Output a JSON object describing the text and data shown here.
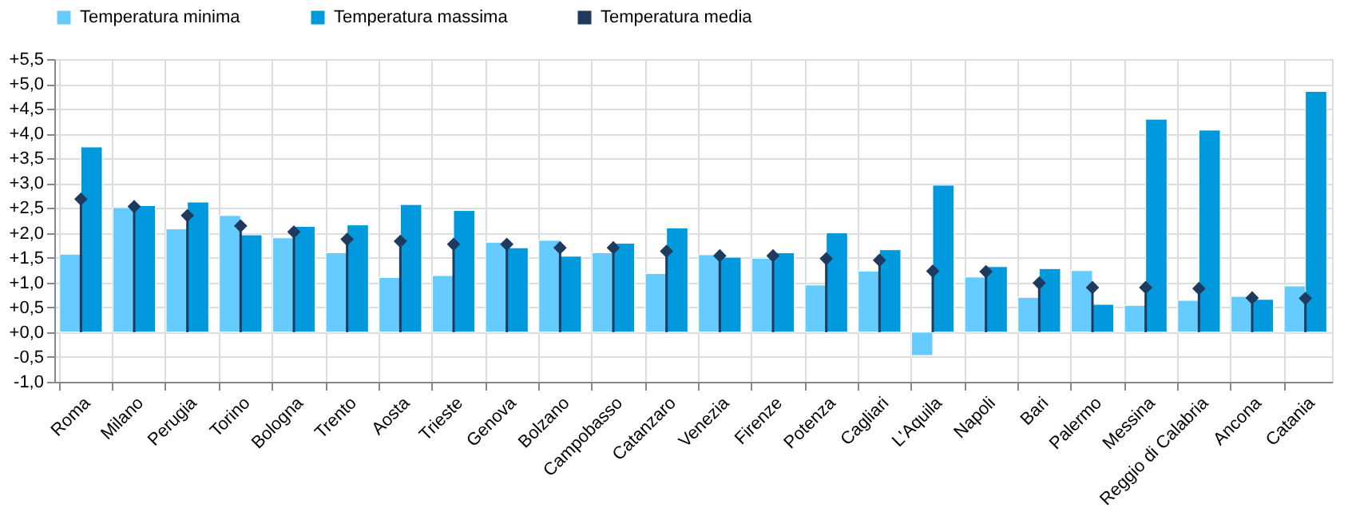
{
  "chart_data": {
    "type": "bar",
    "categories": [
      "Roma",
      "Milano",
      "Perugia",
      "Torino",
      "Bologna",
      "Trento",
      "Aosta",
      "Trieste",
      "Genova",
      "Bolzano",
      "Campobasso",
      "Catanzaro",
      "Venezia",
      "Firenze",
      "Potenza",
      "Cagliari",
      "L'Aquila",
      "Napoli",
      "Bari",
      "Palermo",
      "Messina",
      "Reggio di Calabria",
      "Ancona",
      "Catania"
    ],
    "series": [
      {
        "name": "Temperatura minima",
        "color": "#66ccff",
        "values": [
          1.57,
          2.51,
          2.08,
          2.35,
          1.9,
          1.6,
          1.1,
          1.14,
          1.81,
          1.85,
          1.6,
          1.18,
          1.56,
          1.49,
          0.95,
          1.23,
          -0.47,
          1.11,
          0.7,
          1.24,
          0.54,
          0.64,
          0.72,
          0.93
        ]
      },
      {
        "name": "Temperatura massima",
        "color": "#0099dd",
        "values": [
          3.73,
          2.55,
          2.62,
          1.96,
          2.13,
          2.16,
          2.57,
          2.45,
          1.7,
          1.53,
          1.79,
          2.1,
          1.51,
          1.6,
          2.0,
          1.66,
          2.96,
          1.32,
          1.28,
          0.56,
          4.29,
          4.07,
          0.66,
          4.85
        ]
      },
      {
        "name": "Temperatura media",
        "type": "lollipop",
        "color": "#1f3a5f",
        "marker": "diamond",
        "values": [
          2.68,
          2.53,
          2.35,
          2.14,
          2.02,
          1.87,
          1.83,
          1.77,
          1.77,
          1.7,
          1.7,
          1.63,
          1.54,
          1.54,
          1.48,
          1.45,
          1.23,
          1.22,
          0.99,
          0.9,
          0.9,
          0.88,
          0.69,
          0.68
        ]
      }
    ],
    "ylim": [
      -1.0,
      5.5
    ],
    "yticks": [
      {
        "value": -1.0,
        "label": "-1,0"
      },
      {
        "value": -0.5,
        "label": "-0,5"
      },
      {
        "value": 0.0,
        "label": "+0,0"
      },
      {
        "value": 0.5,
        "label": "+0,5"
      },
      {
        "value": 1.0,
        "label": "+1,0"
      },
      {
        "value": 1.5,
        "label": "+1,5"
      },
      {
        "value": 2.0,
        "label": "+2,0"
      },
      {
        "value": 2.5,
        "label": "+2,5"
      },
      {
        "value": 3.0,
        "label": "+3,0"
      },
      {
        "value": 3.5,
        "label": "+3,5"
      },
      {
        "value": 4.0,
        "label": "+4,0"
      },
      {
        "value": 4.5,
        "label": "+4,5"
      },
      {
        "value": 5.0,
        "label": "+5,0"
      },
      {
        "value": 5.5,
        "label": "+5,5"
      }
    ],
    "grid": true,
    "legend": "top"
  }
}
